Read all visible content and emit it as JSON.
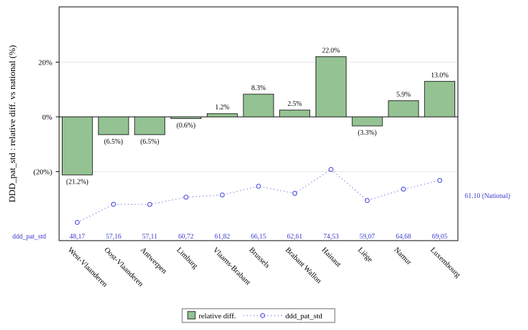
{
  "chart_data": {
    "type": "bar",
    "ylabel": "DDD_pat_std : relative diff. vs national (%)",
    "categories": [
      "West-Vlaanderen",
      "Oost-Vlaanderen",
      "Antwerpen",
      "Limburg",
      "Vlaams-Brabant",
      "Brussels",
      "Brabant Wallon",
      "Hainaut",
      "Liège",
      "Namur",
      "Luxembourg"
    ],
    "y_ticks": [
      {
        "value": 20,
        "label": "20%"
      },
      {
        "value": 0,
        "label": "0%"
      },
      {
        "value": -20,
        "label": "(20%)"
      }
    ],
    "ylim": [
      -45,
      40
    ],
    "series": [
      {
        "name": "relative diff.",
        "values": [
          -21.2,
          -6.5,
          -6.5,
          -0.6,
          1.2,
          8.3,
          2.5,
          22.0,
          -3.3,
          5.9,
          13.0
        ],
        "labels": [
          "(21.2%)",
          "(6.5%)",
          "(6.5%)",
          "(0.6%)",
          "1.2%",
          "8.3%",
          "2.5%",
          "22.0%",
          "(3.3%)",
          "5.9%",
          "13.0%"
        ],
        "color": "#94c293"
      },
      {
        "name": "ddd_pat_std",
        "values": [
          48.17,
          57.16,
          57.11,
          60.72,
          61.82,
          66.15,
          62.61,
          74.53,
          59.07,
          64.68,
          69.05
        ],
        "labels": [
          "48,17",
          "57,16",
          "57,11",
          "60,72",
          "61,82",
          "66,15",
          "62,61",
          "74,53",
          "59,07",
          "64,68",
          "69,05"
        ],
        "row_label": "ddd_pat_std",
        "color": "#3a3ad0"
      }
    ],
    "reference": {
      "value": 61.1,
      "label": "61.10 (National)"
    },
    "legend": {
      "position": "bottom",
      "items": [
        "relative diff.",
        "ddd_pat_std"
      ]
    },
    "grid": true
  }
}
